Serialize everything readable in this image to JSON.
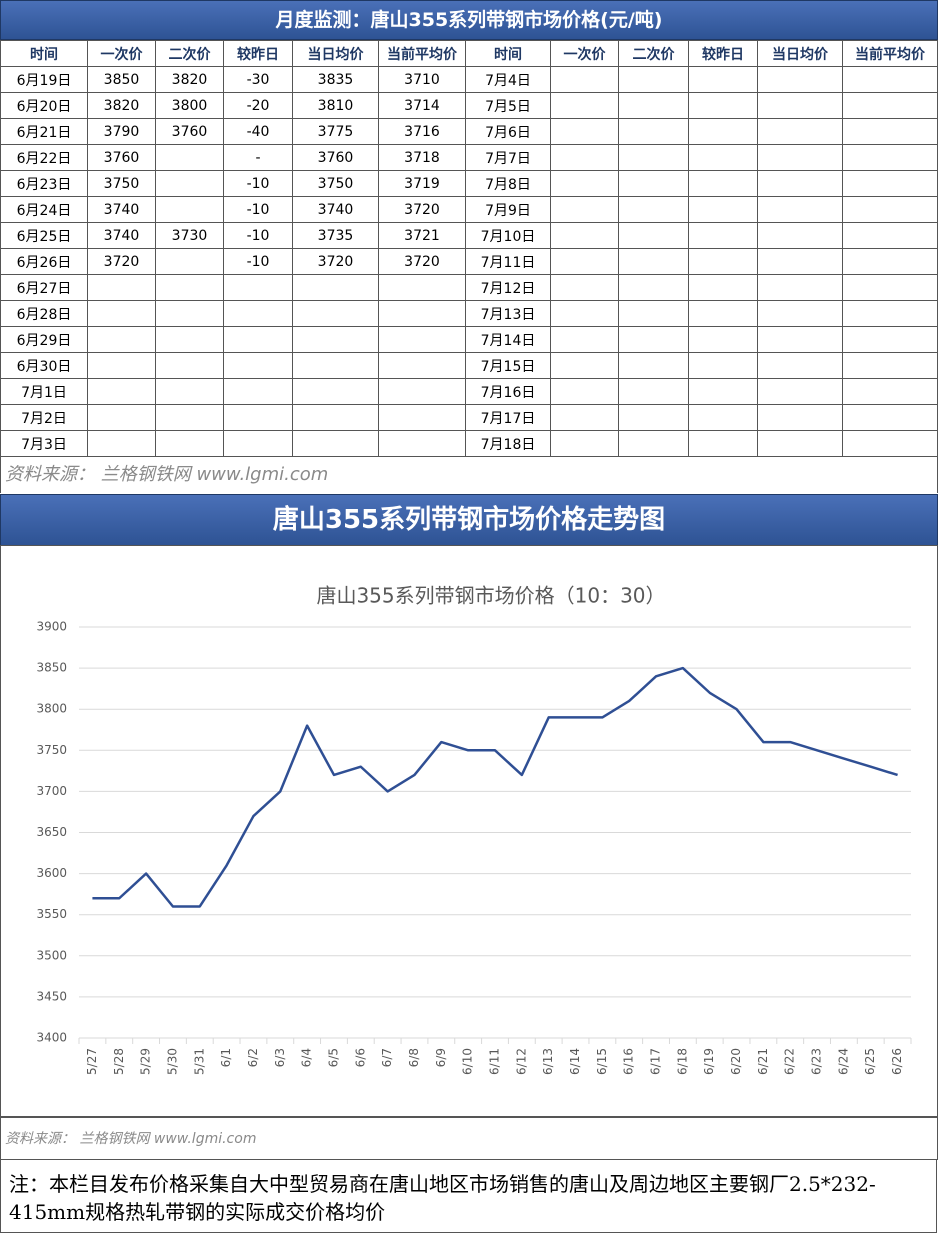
{
  "header": {
    "title": "月度监测：唐山355系列带钢市场价格(元/吨)"
  },
  "table": {
    "columns": [
      "时间",
      "一次价",
      "二次价",
      "较昨日",
      "当日均价",
      "当前平均价",
      "时间",
      "一次价",
      "二次价",
      "较昨日",
      "当日均价",
      "当前平均价"
    ],
    "rows": [
      [
        "6月19日",
        3850,
        3820,
        -30,
        3835,
        3710,
        "7月4日",
        null,
        null,
        null,
        null,
        null
      ],
      [
        "6月20日",
        3820,
        3800,
        -20,
        3810,
        3714,
        "7月5日",
        null,
        null,
        null,
        null,
        null
      ],
      [
        "6月21日",
        3790,
        3760,
        -40,
        3775,
        3716,
        "7月6日",
        null,
        null,
        null,
        null,
        null
      ],
      [
        "6月22日",
        3760,
        null,
        "-",
        3760,
        3718,
        "7月7日",
        null,
        null,
        null,
        null,
        null
      ],
      [
        "6月23日",
        3750,
        null,
        -10,
        3750,
        3719,
        "7月8日",
        null,
        null,
        null,
        null,
        null
      ],
      [
        "6月24日",
        3740,
        null,
        -10,
        3740,
        3720,
        "7月9日",
        null,
        null,
        null,
        null,
        null
      ],
      [
        "6月25日",
        3740,
        3730,
        -10,
        3735,
        3721,
        "7月10日",
        null,
        null,
        null,
        null,
        null
      ],
      [
        "6月26日",
        3720,
        null,
        -10,
        3720,
        3720,
        "7月11日",
        null,
        null,
        null,
        null,
        null
      ],
      [
        "6月27日",
        null,
        null,
        null,
        null,
        null,
        "7月12日",
        null,
        null,
        null,
        null,
        null
      ],
      [
        "6月28日",
        null,
        null,
        null,
        null,
        null,
        "7月13日",
        null,
        null,
        null,
        null,
        null
      ],
      [
        "6月29日",
        null,
        null,
        null,
        null,
        null,
        "7月14日",
        null,
        null,
        null,
        null,
        null
      ],
      [
        "6月30日",
        null,
        null,
        null,
        null,
        null,
        "7月15日",
        null,
        null,
        null,
        null,
        null
      ],
      [
        "7月1日",
        null,
        null,
        null,
        null,
        null,
        "7月16日",
        null,
        null,
        null,
        null,
        null
      ],
      [
        "7月2日",
        null,
        null,
        null,
        null,
        null,
        "7月17日",
        null,
        null,
        null,
        null,
        null
      ],
      [
        "7月3日",
        null,
        null,
        null,
        null,
        null,
        "7月18日",
        null,
        null,
        null,
        null,
        null
      ]
    ]
  },
  "source_1": "资料来源： 兰格钢铁网 www.lgmi.com",
  "chart_section_title": "唐山355系列带钢市场价格走势图",
  "chart_data": {
    "type": "line",
    "title": "唐山355系列带钢市场价格（10：30）",
    "categories": [
      "5/27",
      "5/28",
      "5/29",
      "5/30",
      "5/31",
      "6/1",
      "6/2",
      "6/3",
      "6/4",
      "6/5",
      "6/6",
      "6/7",
      "6/8",
      "6/9",
      "6/10",
      "6/11",
      "6/12",
      "6/13",
      "6/14",
      "6/15",
      "6/16",
      "6/17",
      "6/18",
      "6/19",
      "6/20",
      "6/21",
      "6/22",
      "6/23",
      "6/24",
      "6/25",
      "6/26"
    ],
    "values": [
      3570,
      3570,
      3600,
      3560,
      3560,
      3610,
      3670,
      3700,
      3780,
      3720,
      3730,
      3700,
      3720,
      3760,
      3750,
      3750,
      3720,
      3790,
      3790,
      3790,
      3810,
      3840,
      3850,
      3820,
      3800,
      3760,
      3760,
      3750,
      3740,
      3730,
      3720
    ],
    "color": "#2f4f94",
    "ylim": [
      3400,
      3900
    ],
    "yticks": [
      3400,
      3450,
      3500,
      3550,
      3600,
      3650,
      3700,
      3750,
      3800,
      3850,
      3900
    ],
    "grid": true
  },
  "source_2": "资料来源： 兰格钢铁网 www.lgmi.com",
  "note": "注：本栏目发布价格采集自大中型贸易商在唐山地区市场销售的唐山及周边地区主要钢厂2.5*232-415mm规格热轧带钢的实际成交价格均价"
}
